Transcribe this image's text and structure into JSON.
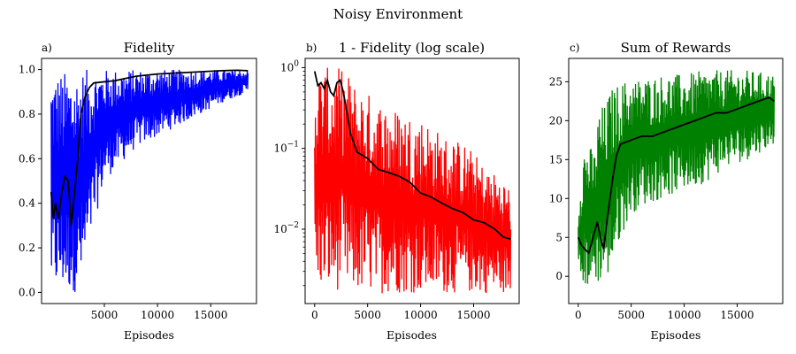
{
  "figure": {
    "title": "Noisy Environment"
  },
  "chart_data": [
    {
      "panel_letter": "a)",
      "type": "line",
      "title": "Fidelity",
      "xlabel": "Episodes",
      "ylabel": "",
      "yscale": "linear",
      "xlim": [
        -900,
        19300
      ],
      "ylim": [
        -0.05,
        1.05
      ],
      "xticks": [
        5000,
        10000,
        15000
      ],
      "xtick_labels": [
        "5000",
        "10000",
        "15000"
      ],
      "yticks": [
        0.0,
        0.2,
        0.4,
        0.6,
        0.8,
        1.0
      ],
      "ytick_labels": [
        "0.0",
        "0.2",
        "0.4",
        "0.6",
        "0.8",
        "1.0"
      ],
      "grid": false,
      "series": [
        {
          "role": "raw",
          "color": "#0000ff",
          "band": {
            "x": [
              0,
              500,
              1000,
              1500,
              2000,
              2500,
              3000,
              4000,
              5000,
              6000,
              8000,
              10000,
              12000,
              14000,
              16000,
              18500
            ],
            "low": [
              0.0,
              0.0,
              0.0,
              0.0,
              0.0,
              0.0,
              0.05,
              0.3,
              0.5,
              0.55,
              0.65,
              0.7,
              0.75,
              0.8,
              0.85,
              0.9
            ],
            "high": [
              0.99,
              0.99,
              0.99,
              0.99,
              0.99,
              0.99,
              1.0,
              1.0,
              1.0,
              1.0,
              1.0,
              1.0,
              1.0,
              1.0,
              1.0,
              1.0
            ]
          }
        },
        {
          "role": "moving-average",
          "color": "#000000",
          "x": [
            0,
            200,
            400,
            700,
            1000,
            1300,
            1600,
            1900,
            2200,
            2500,
            2800,
            3200,
            3600,
            4000,
            5000,
            6000,
            7000,
            8000,
            10000,
            12000,
            14000,
            16000,
            17500,
            18500
          ],
          "y": [
            0.45,
            0.33,
            0.4,
            0.33,
            0.45,
            0.52,
            0.5,
            0.3,
            0.45,
            0.6,
            0.8,
            0.88,
            0.92,
            0.94,
            0.945,
            0.95,
            0.96,
            0.97,
            0.98,
            0.985,
            0.99,
            0.995,
            0.997,
            0.995
          ]
        }
      ]
    },
    {
      "panel_letter": "b)",
      "type": "line",
      "title": "1 - Fidelity (log scale)",
      "xlabel": "Episodes",
      "ylabel": "",
      "yscale": "log",
      "xlim": [
        -900,
        19300
      ],
      "ylim": [
        0.0012,
        1.3
      ],
      "xticks": [
        0,
        5000,
        10000,
        15000
      ],
      "xtick_labels": [
        "0",
        "5000",
        "10000",
        "15000"
      ],
      "yticks": [
        0.01,
        0.1,
        1
      ],
      "ytick_labels": [
        {
          "base": "10",
          "exp": "−2"
        },
        {
          "base": "10",
          "exp": "−1"
        },
        {
          "base": "10",
          "exp": "0"
        }
      ],
      "grid": false,
      "series": [
        {
          "role": "raw",
          "color": "#ff0000",
          "band": {
            "x": [
              0,
              1000,
              2000,
              2500,
              3000,
              4000,
              5000,
              6000,
              8000,
              10000,
              12000,
              14000,
              16000,
              18500
            ],
            "low": [
              0.002,
              0.0016,
              0.0016,
              0.002,
              0.0016,
              0.0016,
              0.0016,
              0.0016,
              0.0016,
              0.0016,
              0.0016,
              0.0016,
              0.0016,
              0.0016
            ],
            "high": [
              1.0,
              1.0,
              1.0,
              1.0,
              0.9,
              0.6,
              0.5,
              0.4,
              0.3,
              0.25,
              0.15,
              0.12,
              0.06,
              0.035
            ]
          }
        },
        {
          "role": "moving-average",
          "color": "#000000",
          "x": [
            0,
            300,
            600,
            900,
            1200,
            1500,
            1800,
            2100,
            2400,
            2700,
            3000,
            3400,
            4000,
            5000,
            6000,
            7000,
            8000,
            9000,
            10000,
            11000,
            12000,
            13000,
            14000,
            15000,
            16000,
            17000,
            17800,
            18500
          ],
          "y": [
            0.9,
            0.6,
            0.65,
            0.55,
            0.7,
            0.5,
            0.45,
            0.65,
            0.7,
            0.5,
            0.3,
            0.15,
            0.09,
            0.075,
            0.055,
            0.05,
            0.045,
            0.038,
            0.028,
            0.025,
            0.021,
            0.018,
            0.016,
            0.013,
            0.012,
            0.01,
            0.008,
            0.0075
          ]
        }
      ]
    },
    {
      "panel_letter": "c)",
      "type": "line",
      "title": "Sum of Rewards",
      "xlabel": "Episodes",
      "ylabel": "",
      "yscale": "linear",
      "xlim": [
        -900,
        19300
      ],
      "ylim": [
        -3.5,
        28
      ],
      "xticks": [
        0,
        5000,
        10000,
        15000
      ],
      "xtick_labels": [
        "0",
        "5000",
        "10000",
        "15000"
      ],
      "yticks": [
        0,
        5,
        10,
        15,
        20,
        25
      ],
      "ytick_labels": [
        "0",
        "5",
        "10",
        "15",
        "20",
        "25"
      ],
      "grid": false,
      "series": [
        {
          "role": "raw",
          "color": "#008000",
          "band": {
            "x": [
              0,
              500,
              1000,
              1500,
              2000,
              2500,
              3000,
              4000,
              5000,
              6000,
              8000,
              10000,
              12000,
              14000,
              16000,
              18500
            ],
            "low": [
              -2.0,
              -1.5,
              -1.5,
              -1.0,
              -1.0,
              -0.5,
              0.0,
              5.0,
              8.0,
              9.0,
              10.0,
              11.0,
              12.0,
              14.0,
              15.0,
              17.0
            ],
            "high": [
              10.0,
              17.0,
              17.0,
              16.0,
              22.0,
              22.0,
              24.0,
              25.0,
              25.5,
              25.5,
              26.0,
              26.0,
              26.5,
              26.5,
              26.5,
              26.0
            ]
          }
        },
        {
          "role": "moving-average",
          "color": "#000000",
          "x": [
            0,
            300,
            600,
            1000,
            1400,
            1800,
            2100,
            2400,
            2700,
            3000,
            3300,
            3600,
            4000,
            5000,
            6000,
            7000,
            8000,
            9000,
            10000,
            11000,
            12000,
            13000,
            14000,
            15000,
            16000,
            17000,
            18000,
            18500
          ],
          "y": [
            5.0,
            4.0,
            3.5,
            3.0,
            5.0,
            7.0,
            5.0,
            3.5,
            7.0,
            10.0,
            13.0,
            15.5,
            17.0,
            17.5,
            18.0,
            18.0,
            18.5,
            19.0,
            19.5,
            20.0,
            20.5,
            21.0,
            21.0,
            21.5,
            22.0,
            22.5,
            23.0,
            22.5
          ]
        }
      ]
    }
  ]
}
